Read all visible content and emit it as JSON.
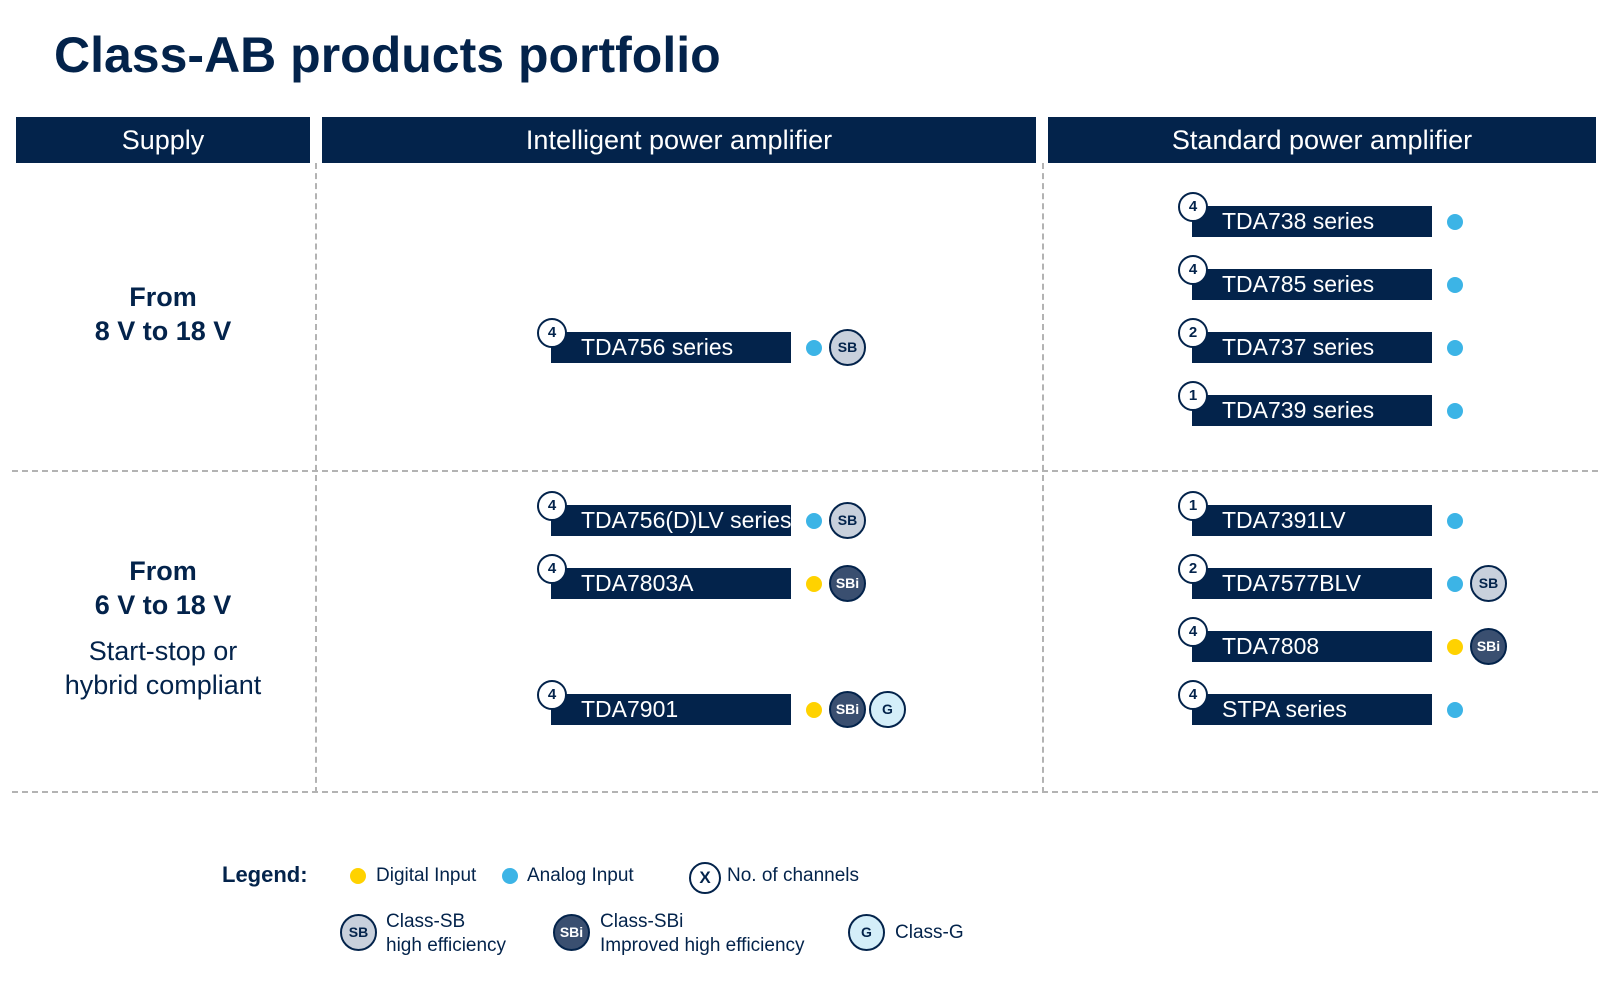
{
  "title": "Class-AB products portfolio",
  "columns": {
    "supply": "Supply",
    "intelligent": "Intelligent power amplifier",
    "standard": "Standard power amplifier"
  },
  "rows": [
    {
      "line1": "From",
      "line2": "8 V to 18 V"
    },
    {
      "line1": "From",
      "line2": "6 V to 18 V",
      "line3": "Start-stop or",
      "line4": "hybrid compliant"
    }
  ],
  "colors": {
    "navy": "#03234b",
    "analog": "#3cb4e6",
    "digital": "#ffd200",
    "sb_fill": "#c8d0dc",
    "sbi_fill": "#3a4f70",
    "g_fill": "#d4eef9"
  },
  "products": [
    {
      "name": "TDA756 series",
      "channels": "4",
      "input": "analog",
      "badges": [
        "SB"
      ]
    },
    {
      "name": "TDA738 series",
      "channels": "4",
      "input": "analog",
      "badges": []
    },
    {
      "name": "TDA785 series",
      "channels": "4",
      "input": "analog",
      "badges": []
    },
    {
      "name": "TDA737 series",
      "channels": "2",
      "input": "analog",
      "badges": []
    },
    {
      "name": "TDA739 series",
      "channels": "1",
      "input": "analog",
      "badges": []
    },
    {
      "name": "TDA756(D)LV series",
      "channels": "4",
      "input": "analog",
      "badges": [
        "SB"
      ]
    },
    {
      "name": "TDA7803A",
      "channels": "4",
      "input": "digital",
      "badges": [
        "SBi"
      ]
    },
    {
      "name": "TDA7901",
      "channels": "4",
      "input": "digital",
      "badges": [
        "SBi",
        "G"
      ]
    },
    {
      "name": "TDA7391LV",
      "channels": "1",
      "input": "analog",
      "badges": []
    },
    {
      "name": "TDA7577BLV",
      "channels": "2",
      "input": "analog",
      "badges": [
        "SB"
      ]
    },
    {
      "name": "TDA7808",
      "channels": "4",
      "input": "digital",
      "badges": [
        "SBi"
      ]
    },
    {
      "name": "STPA series",
      "channels": "4",
      "input": "analog",
      "badges": []
    }
  ],
  "legend": {
    "label": "Legend:",
    "digital": "Digital Input",
    "analog": "Analog Input",
    "channels_symbol": "X",
    "channels": "No. of channels",
    "sb_badge": "SB",
    "sb_line1": "Class-SB",
    "sb_line2": "high efficiency",
    "sbi_badge": "SBi",
    "sbi_line1": "Class-SBi",
    "sbi_line2": "Improved high efficiency",
    "g_badge": "G",
    "g_text": "Class-G"
  }
}
